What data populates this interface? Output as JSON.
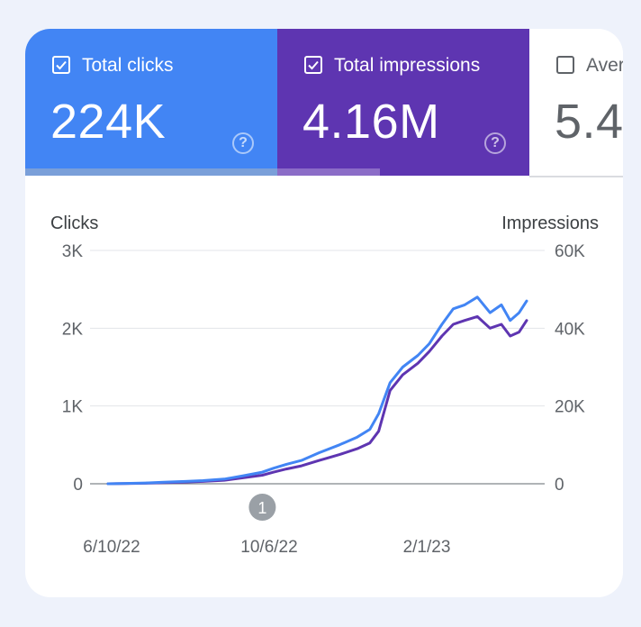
{
  "metrics": {
    "clicks": {
      "label": "Total clicks",
      "value": "224K",
      "checked": true,
      "color": "#4285f4"
    },
    "impressions": {
      "label": "Total impressions",
      "value": "4.16M",
      "checked": true,
      "color": "#5e35b1"
    },
    "position": {
      "label": "Aver",
      "value": "5.4",
      "checked": false
    }
  },
  "help_icon": "help-circle-icon",
  "chart_data": {
    "type": "line",
    "xlabel": "",
    "ylabel_left": "Clicks",
    "ylabel_right": "Impressions",
    "y_ticks_left": [
      "0",
      "1K",
      "2K",
      "3K"
    ],
    "y_ticks_right": [
      "0",
      "20K",
      "40K",
      "60K"
    ],
    "ylim_left": [
      0,
      3000
    ],
    "ylim_right": [
      0,
      60000
    ],
    "x_ticks": [
      "6/10/22",
      "10/6/22",
      "2/1/23"
    ],
    "grid": true,
    "annotation": {
      "label": "1",
      "x": "2022-10-01"
    },
    "series": [
      {
        "name": "Clicks",
        "axis": "left",
        "color": "#4285f4",
        "x": [
          "2022-06-01",
          "2022-06-15",
          "2022-07-01",
          "2022-07-15",
          "2022-08-01",
          "2022-08-15",
          "2022-09-01",
          "2022-09-15",
          "2022-10-01",
          "2022-10-10",
          "2022-10-20",
          "2022-11-01",
          "2022-11-15",
          "2022-12-01",
          "2022-12-15",
          "2022-12-25",
          "2023-01-01",
          "2023-01-10",
          "2023-01-20",
          "2023-02-01",
          "2023-02-10",
          "2023-02-20",
          "2023-03-01",
          "2023-03-10",
          "2023-03-20",
          "2023-03-30",
          "2023-04-08",
          "2023-04-15",
          "2023-04-22",
          "2023-04-28"
        ],
        "y": [
          0,
          5,
          10,
          20,
          30,
          40,
          60,
          100,
          150,
          200,
          250,
          300,
          400,
          500,
          600,
          700,
          900,
          1300,
          1500,
          1650,
          1800,
          2050,
          2250,
          2300,
          2400,
          2200,
          2300,
          2100,
          2200,
          2350
        ]
      },
      {
        "name": "Impressions",
        "axis": "right",
        "color": "#5e35b1",
        "x": [
          "2022-06-01",
          "2022-06-15",
          "2022-07-01",
          "2022-07-15",
          "2022-08-01",
          "2022-08-15",
          "2022-09-01",
          "2022-09-15",
          "2022-10-01",
          "2022-10-10",
          "2022-10-20",
          "2022-11-01",
          "2022-11-15",
          "2022-12-01",
          "2022-12-15",
          "2022-12-25",
          "2023-01-01",
          "2023-01-10",
          "2023-01-20",
          "2023-02-01",
          "2023-02-10",
          "2023-02-20",
          "2023-03-01",
          "2023-03-10",
          "2023-03-20",
          "2023-03-30",
          "2023-04-08",
          "2023-04-15",
          "2023-04-22",
          "2023-04-28"
        ],
        "y": [
          0,
          80,
          150,
          300,
          450,
          600,
          900,
          1500,
          2200,
          3000,
          3800,
          4600,
          6000,
          7500,
          9000,
          10500,
          13500,
          24000,
          28000,
          31000,
          34000,
          38000,
          41000,
          42000,
          43000,
          40000,
          41000,
          38000,
          39000,
          42000
        ]
      }
    ]
  }
}
